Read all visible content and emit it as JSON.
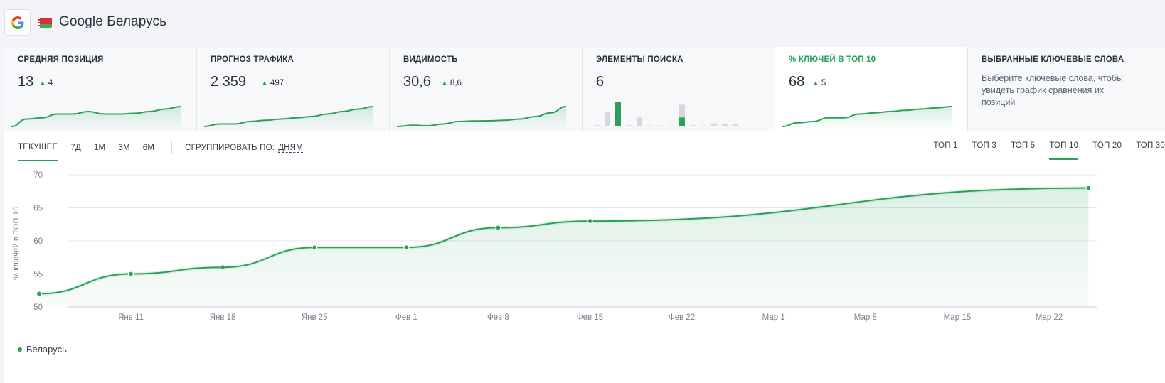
{
  "header": {
    "title": "Google Беларусь",
    "engine_icon": "google-g-icon",
    "flag_icon": "belarus-flag-icon"
  },
  "cards": [
    {
      "id": "avg-position",
      "label": "Средняя позиция",
      "value": "13",
      "delta": "4",
      "chart": "line",
      "active": false,
      "spark": [
        5,
        8,
        8.5,
        10,
        10,
        11,
        10,
        10,
        10.3,
        11,
        12,
        13
      ]
    },
    {
      "id": "traffic-forecast",
      "label": "Прогноз трафика",
      "value": "2 359",
      "delta": "497",
      "chart": "line",
      "active": false,
      "spark": [
        5,
        6,
        6,
        7,
        7.5,
        8,
        8.5,
        9,
        10,
        11,
        12,
        13
      ]
    },
    {
      "id": "visibility",
      "label": "Видимость",
      "value": "30,6",
      "delta": "8,6",
      "chart": "line",
      "active": false,
      "spark": [
        5,
        5.5,
        5.3,
        6,
        7,
        7.2,
        7.3,
        7.5,
        8,
        9,
        10.5,
        13
      ]
    },
    {
      "id": "search-elements",
      "label": "Элементы поиска",
      "value": "6",
      "delta": "",
      "chart": "bars",
      "active": false,
      "bars": [
        {
          "total": 0.05,
          "green": 0
        },
        {
          "total": 0.55,
          "green": 0
        },
        {
          "total": 0.95,
          "green": 0.95
        },
        {
          "total": 0.05,
          "green": 0
        },
        {
          "total": 0.35,
          "green": 0
        },
        {
          "total": 0,
          "green": 0
        },
        {
          "total": 0,
          "green": 0
        },
        {
          "total": 0,
          "green": 0
        },
        {
          "total": 0.85,
          "green": 0.35
        },
        {
          "total": 0.05,
          "green": 0
        },
        {
          "total": 0,
          "green": 0
        },
        {
          "total": 0.12,
          "green": 0
        },
        {
          "total": 0.1,
          "green": 0
        },
        {
          "total": 0.08,
          "green": 0
        }
      ]
    },
    {
      "id": "top10-share",
      "label": "% ключей в ТОП 10",
      "value": "68",
      "delta": "5",
      "chart": "line",
      "active": true,
      "spark": [
        52,
        55,
        56,
        59,
        59,
        62,
        63,
        64,
        65,
        66,
        67,
        68
      ]
    },
    {
      "id": "selected-keywords",
      "label": "Выбранные ключевые слова",
      "description": "Выберите ключевые слова, чтобы увидеть график сравнения их позиций"
    }
  ],
  "period_tabs": [
    {
      "label": "Текущее",
      "active": true
    },
    {
      "label": "7Д",
      "active": false
    },
    {
      "label": "1М",
      "active": false
    },
    {
      "label": "3М",
      "active": false
    },
    {
      "label": "6М",
      "active": false
    }
  ],
  "group_by": {
    "label": "Сгруппировать по:",
    "value": "дням"
  },
  "top_tabs": [
    {
      "label": "ТОП 1",
      "active": false
    },
    {
      "label": "ТОП 3",
      "active": false
    },
    {
      "label": "ТОП 5",
      "active": false
    },
    {
      "label": "ТОП 10",
      "active": true
    },
    {
      "label": "ТОП 20",
      "active": false
    },
    {
      "label": "ТОП 30",
      "active": false
    }
  ],
  "chart_data": {
    "type": "area",
    "ylabel": "% ключей в ТОП 10",
    "ylim": [
      50,
      70
    ],
    "yticks": [
      50,
      55,
      60,
      65,
      70
    ],
    "x_ticks": [
      "Янв 11",
      "Янв 18",
      "Янв 25",
      "Фев 1",
      "Фев 8",
      "Фев 15",
      "Фев 22",
      "Мар 1",
      "Мар 8",
      "Мар 15",
      "Мар 22"
    ],
    "series": [
      {
        "name": "Беларусь",
        "color": "#2aa05a",
        "points": [
          {
            "x": "Янв 4",
            "y": 52
          },
          {
            "x": "Янв 11",
            "y": 55
          },
          {
            "x": "Янв 18",
            "y": 56
          },
          {
            "x": "Янв 25",
            "y": 59
          },
          {
            "x": "Фев 1",
            "y": 59
          },
          {
            "x": "Фев 8",
            "y": 62
          },
          {
            "x": "Фев 15",
            "y": 63
          },
          {
            "x": "Мар 25",
            "y": 68
          }
        ]
      }
    ],
    "grid": true,
    "legend": "bottom-left"
  },
  "colors": {
    "accent": "#2aa05a",
    "text": "#2b3040"
  }
}
